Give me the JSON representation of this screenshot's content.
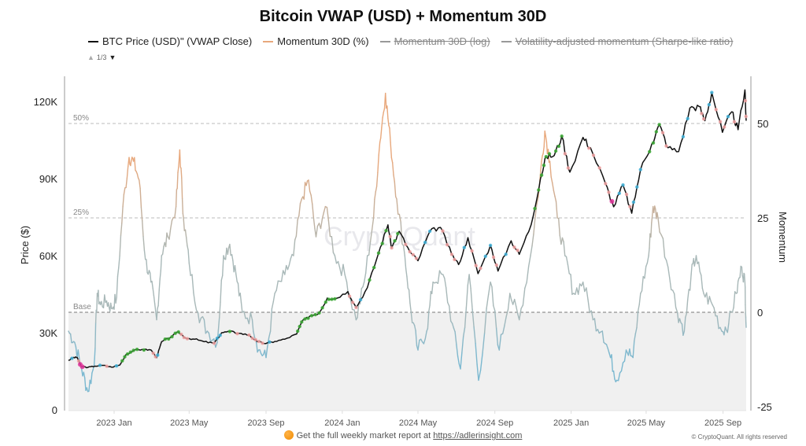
{
  "chart_data": {
    "type": "line",
    "title": "Bitcoin VWAP (USD) + Momentum 30D",
    "legend": [
      {
        "label": "BTC Price (USD)\" (VWAP Close)",
        "color": "#111111",
        "visible": true
      },
      {
        "label": "Momentum 30D (%)",
        "color": "#e8a87c",
        "visible": true
      },
      {
        "label": "Momentum 30D (log)",
        "color": "#888888",
        "visible": false
      },
      {
        "label": "Volatility-adjusted momentum (Sharpe-like ratio)",
        "color": "#888888",
        "visible": false
      }
    ],
    "legend_placement": "top-left",
    "legend_pager": {
      "text": "1/3",
      "up": "▲",
      "down": "▼"
    },
    "ylabel_left": "Price ($)",
    "ylabel_right": "Momentum",
    "ylim_left": [
      0,
      130000
    ],
    "ylim_right": [
      -25,
      60
    ],
    "yticks_left": [
      {
        "value": 0,
        "label": "0"
      },
      {
        "value": 30000,
        "label": "30K"
      },
      {
        "value": 60000,
        "label": "60K"
      },
      {
        "value": 90000,
        "label": "90K"
      },
      {
        "value": 120000,
        "label": "120K"
      }
    ],
    "yticks_right": [
      {
        "value": -25,
        "label": "-25"
      },
      {
        "value": 0,
        "label": "0"
      },
      {
        "value": 25,
        "label": "25"
      },
      {
        "value": 50,
        "label": "50"
      }
    ],
    "xrange": [
      "2022-10-20",
      "2025-10-08"
    ],
    "xticks": [
      {
        "date": "2023-01-01",
        "label": "2023 Jan"
      },
      {
        "date": "2023-05-01",
        "label": "2023 May"
      },
      {
        "date": "2023-09-01",
        "label": "2023 Sep"
      },
      {
        "date": "2024-01-01",
        "label": "2024 Jan"
      },
      {
        "date": "2024-05-01",
        "label": "2024 May"
      },
      {
        "date": "2024-09-01",
        "label": "2024 Sep"
      },
      {
        "date": "2025-01-01",
        "label": "2025 Jan"
      },
      {
        "date": "2025-05-01",
        "label": "2025 May"
      },
      {
        "date": "2025-09-01",
        "label": "2025 Sep"
      }
    ],
    "reference_lines": [
      {
        "value": 50,
        "label": "50%",
        "axis": "right"
      },
      {
        "value": 25,
        "label": "25%",
        "axis": "right"
      },
      {
        "value": 0,
        "label": "Base",
        "axis": "right"
      }
    ],
    "negative_region_shaded": true,
    "watermark": "CryptoQuant",
    "series": [
      {
        "name": "BTC Price (USD)\" (VWAP Close)",
        "axis": "left",
        "color": "#111111",
        "points": [
          [
            "2022-10-20",
            19200
          ],
          [
            "2022-10-27",
            20300
          ],
          [
            "2022-11-03",
            20400
          ],
          [
            "2022-11-09",
            16900
          ],
          [
            "2022-11-20",
            16500
          ],
          [
            "2022-12-01",
            17000
          ],
          [
            "2022-12-15",
            17300
          ],
          [
            "2022-12-28",
            16600
          ],
          [
            "2023-01-10",
            17400
          ],
          [
            "2023-01-20",
            21500
          ],
          [
            "2023-02-01",
            23100
          ],
          [
            "2023-02-15",
            23500
          ],
          [
            "2023-03-01",
            23300
          ],
          [
            "2023-03-10",
            20300
          ],
          [
            "2023-03-18",
            26500
          ],
          [
            "2023-04-01",
            28200
          ],
          [
            "2023-04-14",
            30300
          ],
          [
            "2023-04-25",
            28000
          ],
          [
            "2023-05-10",
            27500
          ],
          [
            "2023-05-25",
            26500
          ],
          [
            "2023-06-10",
            25900
          ],
          [
            "2023-06-22",
            30000
          ],
          [
            "2023-07-05",
            30500
          ],
          [
            "2023-07-20",
            29800
          ],
          [
            "2023-08-05",
            29100
          ],
          [
            "2023-08-18",
            26500
          ],
          [
            "2023-09-01",
            25800
          ],
          [
            "2023-09-15",
            26600
          ],
          [
            "2023-10-01",
            27500
          ],
          [
            "2023-10-20",
            29500
          ],
          [
            "2023-10-28",
            34200
          ],
          [
            "2023-11-10",
            36500
          ],
          [
            "2023-11-25",
            37700
          ],
          [
            "2023-12-08",
            43500
          ],
          [
            "2023-12-20",
            43200
          ],
          [
            "2024-01-10",
            46000
          ],
          [
            "2024-01-23",
            39800
          ],
          [
            "2024-02-10",
            47500
          ],
          [
            "2024-02-28",
            61000
          ],
          [
            "2024-03-14",
            72000
          ],
          [
            "2024-03-20",
            63000
          ],
          [
            "2024-04-01",
            69500
          ],
          [
            "2024-04-18",
            61500
          ],
          [
            "2024-05-01",
            58000
          ],
          [
            "2024-05-20",
            69500
          ],
          [
            "2024-06-06",
            71000
          ],
          [
            "2024-06-24",
            60500
          ],
          [
            "2024-07-05",
            56500
          ],
          [
            "2024-07-20",
            67000
          ],
          [
            "2024-08-05",
            53000
          ],
          [
            "2024-08-25",
            64000
          ],
          [
            "2024-09-06",
            54000
          ],
          [
            "2024-09-27",
            65800
          ],
          [
            "2024-10-10",
            60500
          ],
          [
            "2024-10-29",
            72000
          ],
          [
            "2024-11-13",
            90000
          ],
          [
            "2024-11-22",
            98500
          ],
          [
            "2024-12-05",
            99000
          ],
          [
            "2024-12-17",
            106500
          ],
          [
            "2024-12-30",
            92500
          ],
          [
            "2025-01-20",
            106000
          ],
          [
            "2025-02-01",
            102000
          ],
          [
            "2025-02-25",
            88000
          ],
          [
            "2025-03-10",
            79000
          ],
          [
            "2025-03-25",
            87500
          ],
          [
            "2025-04-08",
            76500
          ],
          [
            "2025-04-22",
            93500
          ],
          [
            "2025-05-10",
            103500
          ],
          [
            "2025-05-22",
            111000
          ],
          [
            "2025-06-05",
            102000
          ],
          [
            "2025-06-22",
            100500
          ],
          [
            "2025-07-10",
            117500
          ],
          [
            "2025-07-25",
            118000
          ],
          [
            "2025-08-03",
            112500
          ],
          [
            "2025-08-14",
            123500
          ],
          [
            "2025-08-31",
            108000
          ],
          [
            "2025-09-15",
            116000
          ],
          [
            "2025-09-25",
            109000
          ],
          [
            "2025-10-06",
            124500
          ],
          [
            "2025-10-08",
            112500
          ]
        ]
      },
      {
        "name": "Momentum 30D (%)",
        "axis": "right",
        "color_positive": "#e8a87c",
        "color_neutral": "#a8b8b8",
        "color_negative": "#7ab8d0",
        "points": [
          [
            "2022-10-20",
            -5
          ],
          [
            "2022-10-30",
            -8
          ],
          [
            "2022-11-10",
            -15
          ],
          [
            "2022-11-20",
            -21
          ],
          [
            "2022-11-30",
            -14
          ],
          [
            "2022-12-05",
            5
          ],
          [
            "2022-12-10",
            2
          ],
          [
            "2022-12-20",
            3
          ],
          [
            "2022-12-28",
            1
          ],
          [
            "2023-01-05",
            4
          ],
          [
            "2023-01-15",
            28
          ],
          [
            "2023-01-25",
            41
          ],
          [
            "2023-02-01",
            40
          ],
          [
            "2023-02-10",
            35
          ],
          [
            "2023-02-20",
            14
          ],
          [
            "2023-03-01",
            8
          ],
          [
            "2023-03-10",
            -2
          ],
          [
            "2023-03-18",
            15
          ],
          [
            "2023-03-28",
            20
          ],
          [
            "2023-04-10",
            28
          ],
          [
            "2023-04-16",
            43
          ],
          [
            "2023-04-22",
            25
          ],
          [
            "2023-05-01",
            13
          ],
          [
            "2023-05-15",
            0
          ],
          [
            "2023-05-30",
            -5
          ],
          [
            "2023-06-15",
            -8
          ],
          [
            "2023-06-25",
            15
          ],
          [
            "2023-07-05",
            18
          ],
          [
            "2023-07-15",
            10
          ],
          [
            "2023-07-25",
            0
          ],
          [
            "2023-08-10",
            -2
          ],
          [
            "2023-08-20",
            -10
          ],
          [
            "2023-09-01",
            -12
          ],
          [
            "2023-09-15",
            5
          ],
          [
            "2023-10-01",
            10
          ],
          [
            "2023-10-15",
            15
          ],
          [
            "2023-10-28",
            30
          ],
          [
            "2023-11-08",
            35
          ],
          [
            "2023-11-20",
            20
          ],
          [
            "2023-12-05",
            28
          ],
          [
            "2023-12-20",
            15
          ],
          [
            "2024-01-05",
            10
          ],
          [
            "2024-01-23",
            -2
          ],
          [
            "2024-02-05",
            8
          ],
          [
            "2024-02-20",
            25
          ],
          [
            "2024-03-01",
            45
          ],
          [
            "2024-03-10",
            58
          ],
          [
            "2024-03-18",
            45
          ],
          [
            "2024-03-28",
            30
          ],
          [
            "2024-04-10",
            15
          ],
          [
            "2024-04-20",
            0
          ],
          [
            "2024-05-01",
            -10
          ],
          [
            "2024-05-15",
            -5
          ],
          [
            "2024-05-25",
            8
          ],
          [
            "2024-06-10",
            10
          ],
          [
            "2024-06-25",
            -3
          ],
          [
            "2024-07-08",
            -15
          ],
          [
            "2024-07-22",
            10
          ],
          [
            "2024-08-06",
            -18
          ],
          [
            "2024-08-25",
            8
          ],
          [
            "2024-09-08",
            -10
          ],
          [
            "2024-09-25",
            5
          ],
          [
            "2024-10-10",
            -2
          ],
          [
            "2024-10-28",
            15
          ],
          [
            "2024-11-12",
            35
          ],
          [
            "2024-11-20",
            48
          ],
          [
            "2024-11-28",
            40
          ],
          [
            "2024-12-10",
            25
          ],
          [
            "2024-12-22",
            15
          ],
          [
            "2025-01-05",
            5
          ],
          [
            "2025-01-20",
            8
          ],
          [
            "2025-02-05",
            -2
          ],
          [
            "2025-02-20",
            -5
          ],
          [
            "2025-03-05",
            -12
          ],
          [
            "2025-03-15",
            -18
          ],
          [
            "2025-03-30",
            -10
          ],
          [
            "2025-04-10",
            -12
          ],
          [
            "2025-04-22",
            5
          ],
          [
            "2025-05-05",
            15
          ],
          [
            "2025-05-12",
            28
          ],
          [
            "2025-05-20",
            25
          ],
          [
            "2025-06-05",
            12
          ],
          [
            "2025-06-20",
            0
          ],
          [
            "2025-07-01",
            -5
          ],
          [
            "2025-07-12",
            10
          ],
          [
            "2025-07-20",
            15
          ],
          [
            "2025-08-01",
            5
          ],
          [
            "2025-08-15",
            2
          ],
          [
            "2025-08-30",
            -5
          ],
          [
            "2025-09-10",
            -3
          ],
          [
            "2025-09-22",
            5
          ],
          [
            "2025-10-01",
            12
          ],
          [
            "2025-10-06",
            8
          ],
          [
            "2025-10-08",
            -4
          ]
        ]
      }
    ]
  },
  "footer": {
    "promo_text": "Get the full weekly market report at ",
    "promo_link": "https://adlerinsight.com",
    "copyright": "© CryptoQuant. All rights reserved"
  }
}
